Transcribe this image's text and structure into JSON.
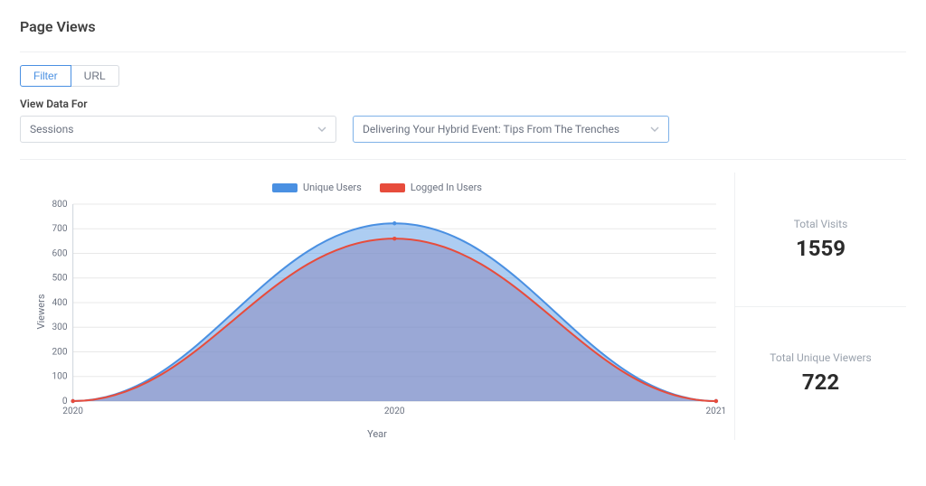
{
  "page": {
    "title": "Page Views"
  },
  "toggle": {
    "options": [
      "Filter",
      "URL"
    ],
    "active_index": 0
  },
  "filter": {
    "label": "View Data For",
    "primary_select": {
      "value": "Sessions"
    },
    "secondary_select": {
      "value": "Delivering Your Hybrid Event: Tips From The Trenches"
    }
  },
  "stats": {
    "total_visits": {
      "label": "Total Visits",
      "value": "1559"
    },
    "total_unique": {
      "label": "Total Unique Viewers",
      "value": "722"
    }
  },
  "chart": {
    "type": "area",
    "y_label": "Viewers",
    "x_label": "Year",
    "ylim": [
      0,
      800
    ],
    "ytick_step": 100,
    "x_ticks": [
      "2020",
      "2020",
      "2021"
    ],
    "x_domain": [
      0,
      1
    ],
    "series": [
      {
        "name": "Unique Users",
        "color_line": "#4a90e2",
        "color_fill": "#4a90e2",
        "fill_opacity": 0.45,
        "line_width": 2,
        "points": [
          [
            0.0,
            0
          ],
          [
            0.5,
            722
          ],
          [
            1.0,
            0
          ]
        ]
      },
      {
        "name": "Logged In Users",
        "color_line": "#e74c3c",
        "color_fill": "#8a8abf",
        "fill_opacity": 0.55,
        "line_width": 2,
        "points": [
          [
            0.0,
            0
          ],
          [
            0.5,
            660
          ],
          [
            1.0,
            0
          ]
        ]
      }
    ],
    "background_color": "#ffffff",
    "grid_color": "#e8e8e8",
    "axis_fontsize": 10,
    "label_fontsize": 11
  }
}
